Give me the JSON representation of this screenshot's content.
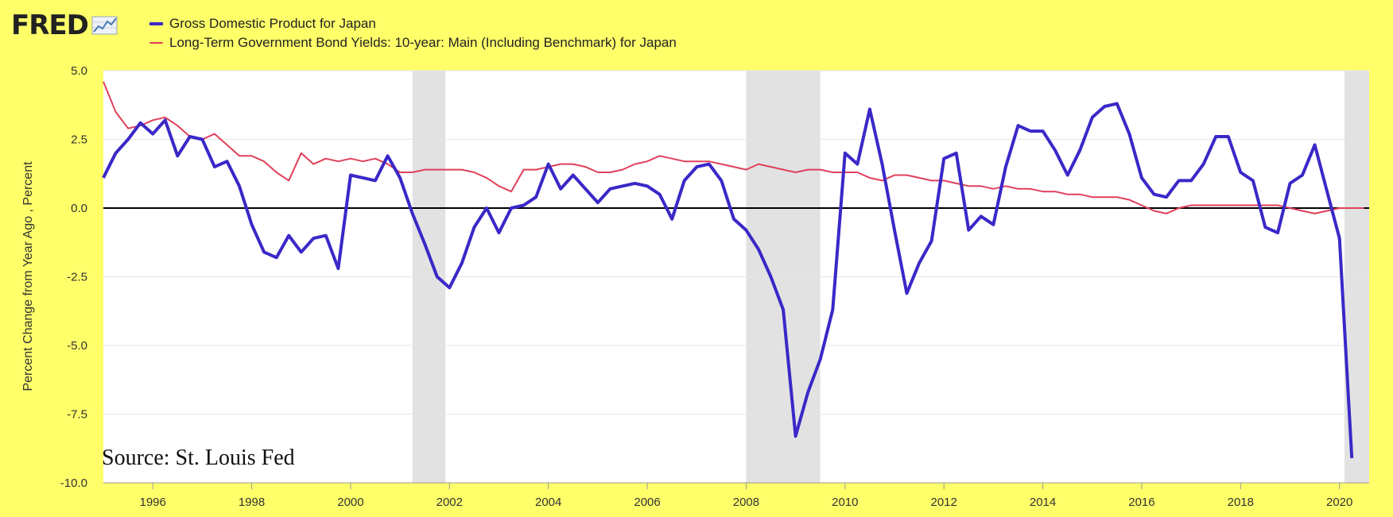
{
  "header": {
    "logo_text": "FRED",
    "logo_icon": "trend-line-icon"
  },
  "colors": {
    "background": "#ffff6a",
    "plot_background": "#ffffff",
    "gdp_series": "#3a28c8",
    "bond_series": "#e0405a",
    "recession_band": "#e2e2e2",
    "zero_line": "#000000"
  },
  "chart_data": {
    "type": "line",
    "xlabel": "",
    "ylabel": "Percent Change from Year Ago , Percent",
    "ylim": [
      -10,
      5
    ],
    "xlim": [
      1995.0,
      2020.6
    ],
    "yticks": [
      5.0,
      2.5,
      0.0,
      -2.5,
      -5.0,
      -7.5,
      -10.0
    ],
    "ytick_labels": [
      "5.0",
      "2.5",
      "0.0",
      "-2.5",
      "-5.0",
      "-7.5",
      "-10.0"
    ],
    "xticks": [
      1996,
      1998,
      2000,
      2002,
      2004,
      2006,
      2008,
      2010,
      2012,
      2014,
      2016,
      2018,
      2020
    ],
    "xtick_labels": [
      "1996",
      "1998",
      "2000",
      "2002",
      "2004",
      "2006",
      "2008",
      "2010",
      "2012",
      "2014",
      "2016",
      "2018",
      "2020"
    ],
    "grid": true,
    "legend_position": "top-left",
    "recessions": [
      [
        2001.25,
        2001.92
      ],
      [
        2008.0,
        2009.5
      ],
      [
        2020.1,
        2020.6
      ]
    ],
    "annotation": "Source: St. Louis Fed",
    "series": [
      {
        "name": "Gross Domestic Product for Japan",
        "x": [
          1995.0,
          1995.25,
          1995.5,
          1995.75,
          1996.0,
          1996.25,
          1996.5,
          1996.75,
          1997.0,
          1997.25,
          1997.5,
          1997.75,
          1998.0,
          1998.25,
          1998.5,
          1998.75,
          1999.0,
          1999.25,
          1999.5,
          1999.75,
          2000.0,
          2000.25,
          2000.5,
          2000.75,
          2001.0,
          2001.25,
          2001.5,
          2001.75,
          2002.0,
          2002.25,
          2002.5,
          2002.75,
          2003.0,
          2003.25,
          2003.5,
          2003.75,
          2004.0,
          2004.25,
          2004.5,
          2004.75,
          2005.0,
          2005.25,
          2005.5,
          2005.75,
          2006.0,
          2006.25,
          2006.5,
          2006.75,
          2007.0,
          2007.25,
          2007.5,
          2007.75,
          2008.0,
          2008.25,
          2008.5,
          2008.75,
          2009.0,
          2009.25,
          2009.5,
          2009.75,
          2010.0,
          2010.25,
          2010.5,
          2010.75,
          2011.0,
          2011.25,
          2011.5,
          2011.75,
          2012.0,
          2012.25,
          2012.5,
          2012.75,
          2013.0,
          2013.25,
          2013.5,
          2013.75,
          2014.0,
          2014.25,
          2014.5,
          2014.75,
          2015.0,
          2015.25,
          2015.5,
          2015.75,
          2016.0,
          2016.25,
          2016.5,
          2016.75,
          2017.0,
          2017.25,
          2017.5,
          2017.75,
          2018.0,
          2018.25,
          2018.5,
          2018.75,
          2019.0,
          2019.25,
          2019.5,
          2019.75,
          2020.0,
          2020.25
        ],
        "y": [
          1.1,
          2.0,
          2.5,
          3.1,
          2.7,
          3.2,
          1.9,
          2.6,
          2.5,
          1.5,
          1.7,
          0.8,
          -0.6,
          -1.6,
          -1.8,
          -1.0,
          -1.6,
          -1.1,
          -1.0,
          -2.2,
          1.2,
          1.1,
          1.0,
          1.9,
          1.1,
          -0.2,
          -1.3,
          -2.5,
          -2.9,
          -2.0,
          -0.7,
          0.0,
          -0.9,
          0.0,
          0.1,
          0.4,
          1.6,
          0.7,
          1.2,
          0.7,
          0.2,
          0.7,
          0.8,
          0.9,
          0.8,
          0.5,
          -0.4,
          1.0,
          1.5,
          1.6,
          1.0,
          -0.4,
          -0.8,
          -1.5,
          -2.5,
          -3.7,
          -8.3,
          -6.7,
          -5.5,
          -3.7,
          2.0,
          1.6,
          3.6,
          1.6,
          -0.8,
          -3.1,
          -2.0,
          -1.2,
          1.8,
          2.0,
          -0.8,
          -0.3,
          -0.6,
          1.5,
          3.0,
          2.8,
          2.8,
          2.1,
          1.2,
          2.1,
          3.3,
          3.7,
          3.8,
          2.7,
          1.1,
          0.5,
          0.4,
          1.0,
          1.0,
          1.6,
          2.6,
          2.6,
          1.3,
          1.0,
          -0.7,
          -0.9,
          0.9,
          1.2,
          2.3,
          0.6,
          -1.1,
          -9.1
        ]
      },
      {
        "name": "Long-Term Government Bond Yields: 10-year: Main (Including Benchmark) for Japan",
        "x": [
          1995.0,
          1995.25,
          1995.5,
          1995.75,
          1996.0,
          1996.25,
          1996.5,
          1996.75,
          1997.0,
          1997.25,
          1997.5,
          1997.75,
          1998.0,
          1998.25,
          1998.5,
          1998.75,
          1999.0,
          1999.25,
          1999.5,
          1999.75,
          2000.0,
          2000.25,
          2000.5,
          2000.75,
          2001.0,
          2001.25,
          2001.5,
          2001.75,
          2002.0,
          2002.25,
          2002.5,
          2002.75,
          2003.0,
          2003.25,
          2003.5,
          2003.75,
          2004.0,
          2004.25,
          2004.5,
          2004.75,
          2005.0,
          2005.25,
          2005.5,
          2005.75,
          2006.0,
          2006.25,
          2006.5,
          2006.75,
          2007.0,
          2007.25,
          2007.5,
          2007.75,
          2008.0,
          2008.25,
          2008.5,
          2008.75,
          2009.0,
          2009.25,
          2009.5,
          2009.75,
          2010.0,
          2010.25,
          2010.5,
          2010.75,
          2011.0,
          2011.25,
          2011.5,
          2011.75,
          2012.0,
          2012.25,
          2012.5,
          2012.75,
          2013.0,
          2013.25,
          2013.5,
          2013.75,
          2014.0,
          2014.25,
          2014.5,
          2014.75,
          2015.0,
          2015.25,
          2015.5,
          2015.75,
          2016.0,
          2016.25,
          2016.5,
          2016.75,
          2017.0,
          2017.25,
          2017.5,
          2017.75,
          2018.0,
          2018.25,
          2018.5,
          2018.75,
          2019.0,
          2019.25,
          2019.5,
          2019.75,
          2020.0,
          2020.25,
          2020.5
        ],
        "y": [
          4.6,
          3.5,
          2.9,
          3.0,
          3.2,
          3.3,
          3.0,
          2.6,
          2.5,
          2.7,
          2.3,
          1.9,
          1.9,
          1.7,
          1.3,
          1.0,
          2.0,
          1.6,
          1.8,
          1.7,
          1.8,
          1.7,
          1.8,
          1.6,
          1.3,
          1.3,
          1.4,
          1.4,
          1.4,
          1.4,
          1.3,
          1.1,
          0.8,
          0.6,
          1.4,
          1.4,
          1.5,
          1.6,
          1.6,
          1.5,
          1.3,
          1.3,
          1.4,
          1.6,
          1.7,
          1.9,
          1.8,
          1.7,
          1.7,
          1.7,
          1.6,
          1.5,
          1.4,
          1.6,
          1.5,
          1.4,
          1.3,
          1.4,
          1.4,
          1.3,
          1.3,
          1.3,
          1.1,
          1.0,
          1.2,
          1.2,
          1.1,
          1.0,
          1.0,
          0.9,
          0.8,
          0.8,
          0.7,
          0.8,
          0.7,
          0.7,
          0.6,
          0.6,
          0.5,
          0.5,
          0.4,
          0.4,
          0.4,
          0.3,
          0.1,
          -0.1,
          -0.2,
          0.0,
          0.1,
          0.1,
          0.1,
          0.1,
          0.1,
          0.1,
          0.1,
          0.1,
          0.0,
          -0.1,
          -0.2,
          -0.1,
          0.0,
          0.0,
          0.0
        ]
      }
    ]
  }
}
